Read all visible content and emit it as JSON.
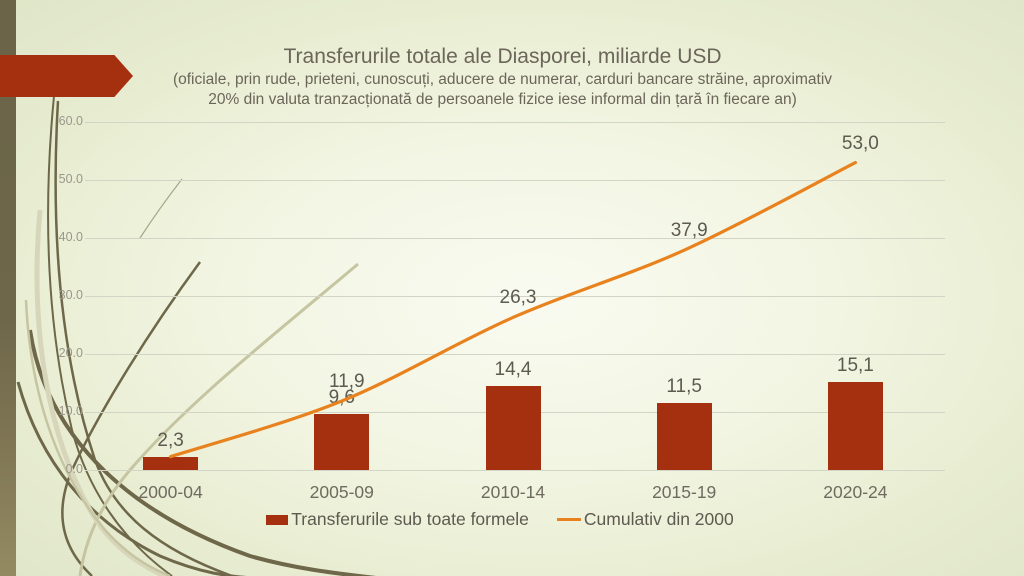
{
  "slide": {
    "title": "Transferurile totale ale Diasporei, miliarde USD",
    "subtitle_line1": "(oficiale, prin rude, prieteni, cunoscuți, aducere de numerar, carduri bancare străine, aproximativ",
    "subtitle_line2": "20% din valuta tranzacționată de persoanele fizice iese informal din țară în fiecare an)"
  },
  "colors": {
    "bar_series": "#A5300F",
    "line_series": "#E8821E",
    "accent_arrow": "#A5300F"
  },
  "chart_data": {
    "type": "bar",
    "subtype": "combo bar + smooth line",
    "title": "Transferurile totale ale Diasporei, miliarde USD",
    "categories": [
      "2000-04",
      "2005-09",
      "2010-14",
      "2015-19",
      "2020-24"
    ],
    "series": [
      {
        "name": "Transferurile sub toate formele",
        "type": "bar",
        "color": "#A5300F",
        "values": [
          2.3,
          9.6,
          14.4,
          11.5,
          15.1
        ],
        "labels": [
          "2,3",
          "9,6",
          "14,4",
          "11,5",
          "15,1"
        ]
      },
      {
        "name": "Cumulativ din 2000",
        "type": "line",
        "color": "#E8821E",
        "values": [
          2.3,
          11.9,
          26.3,
          37.9,
          53.0
        ],
        "labels": [
          "",
          "11,9",
          "26,3",
          "37,9",
          "53,0"
        ]
      }
    ],
    "y_axis": {
      "min": 0,
      "max": 60,
      "step": 10,
      "tick_labels": [
        "0.0",
        "10.0",
        "20.0",
        "30.0",
        "40.0",
        "50.0",
        "60.0"
      ]
    },
    "grid": true,
    "legend_position": "bottom"
  }
}
